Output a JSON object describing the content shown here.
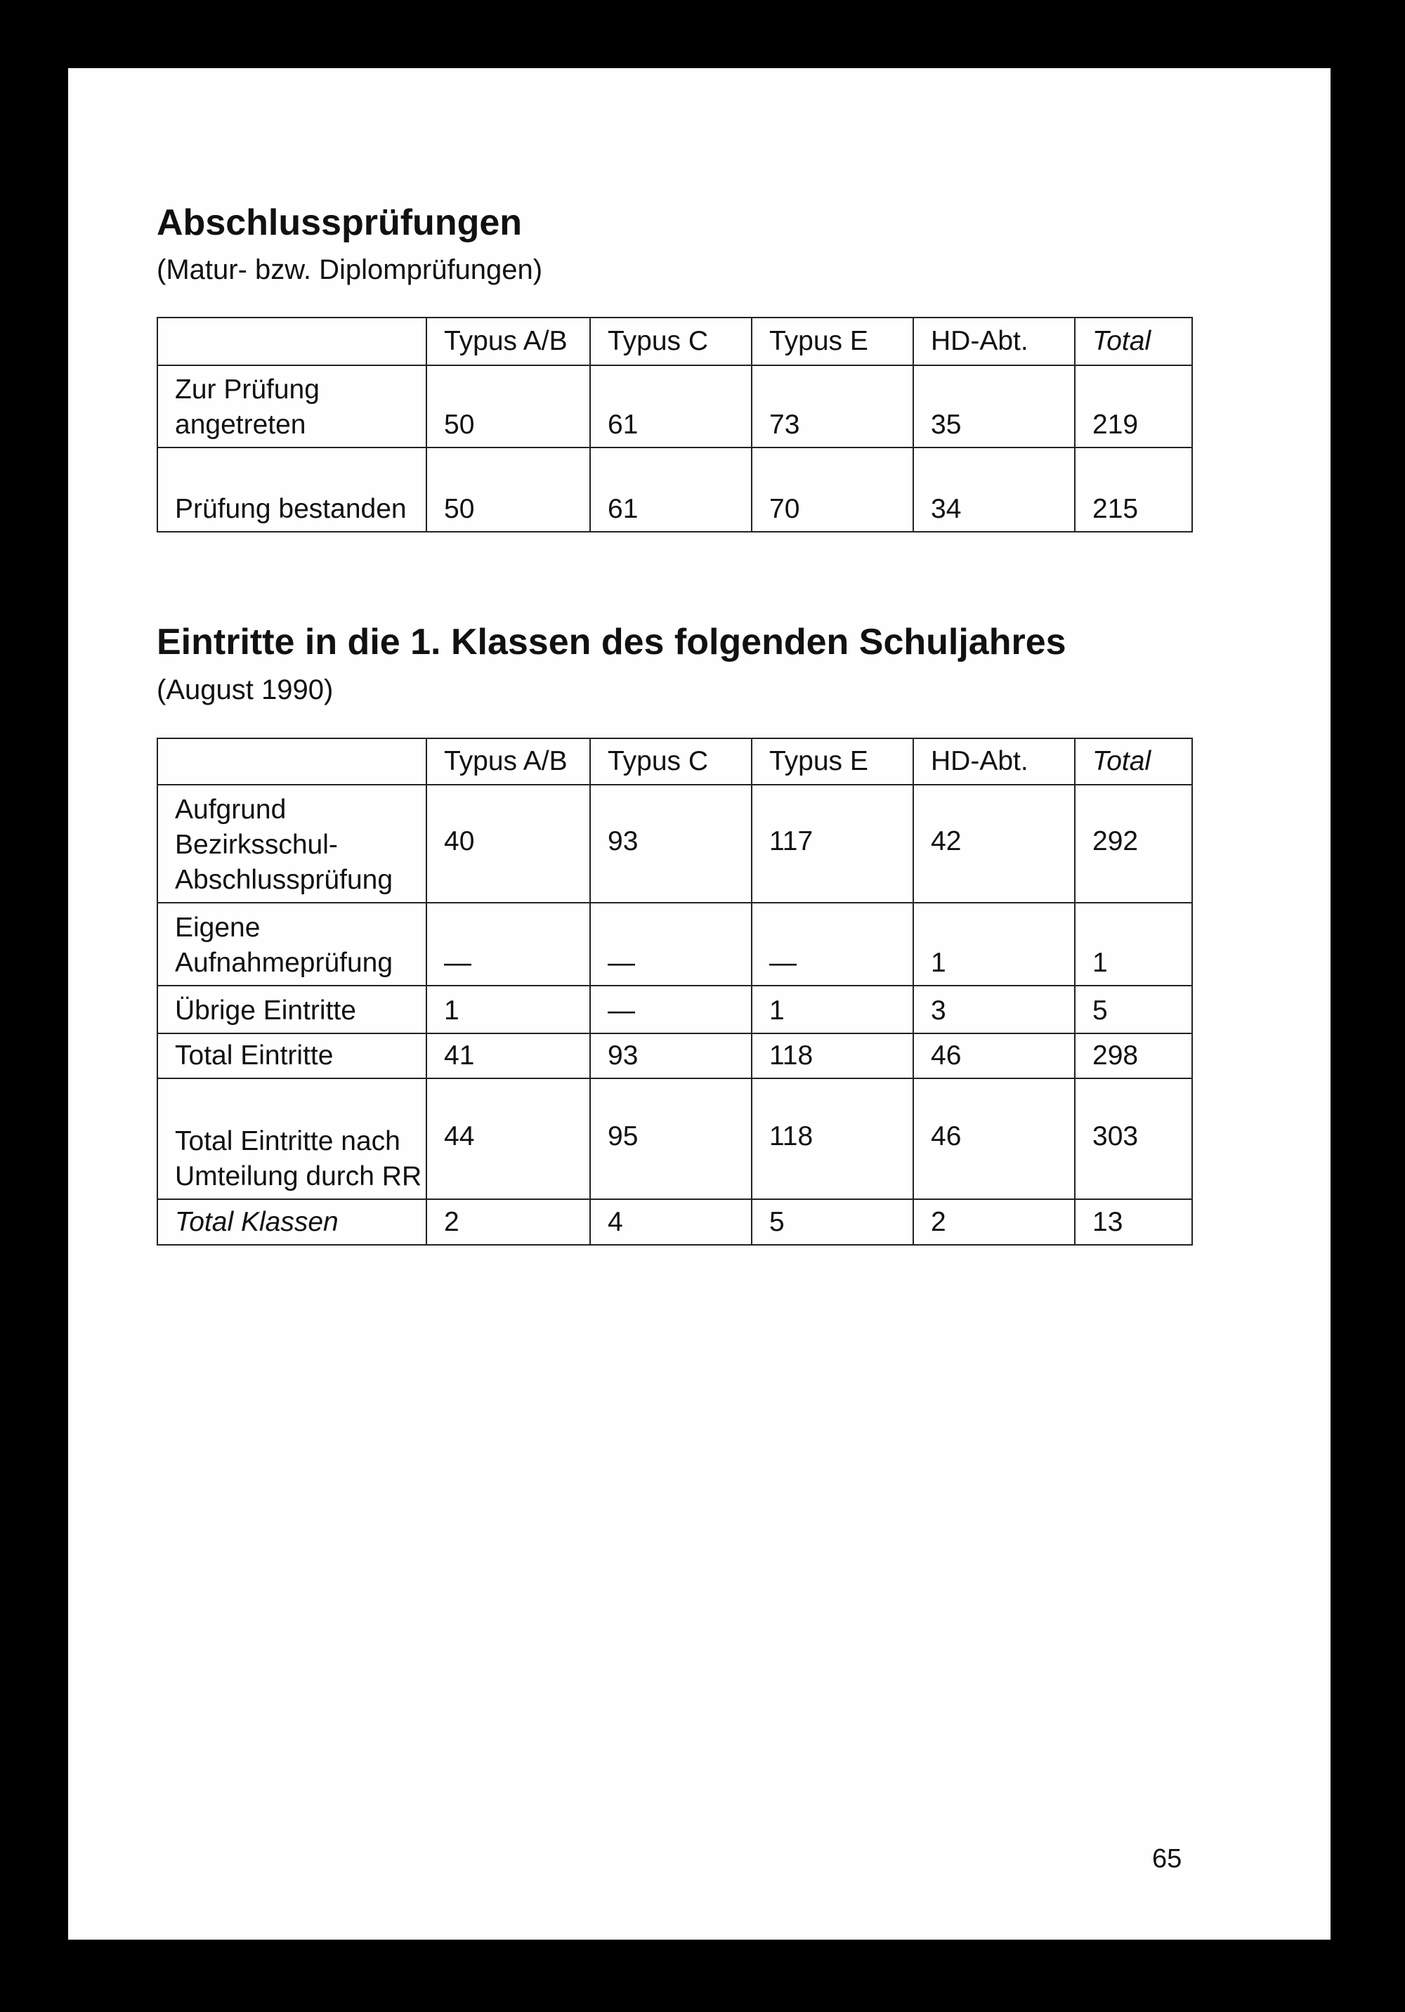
{
  "section1": {
    "title": "Abschlussprüfungen",
    "subtitle": "(Matur- bzw. Diplomprüfungen)",
    "columns": [
      "",
      "Typus A/B",
      "Typus C",
      "Typus E",
      "HD-Abt.",
      "Total"
    ],
    "rows": [
      {
        "label": "Zur Prüfung angetreten",
        "values": [
          "50",
          "61",
          "73",
          "35",
          "219"
        ]
      },
      {
        "label": "Prüfung bestanden",
        "values": [
          "50",
          "61",
          "70",
          "34",
          "215"
        ]
      }
    ]
  },
  "section2": {
    "title": "Eintritte in die 1. Klassen des folgenden Schuljahres",
    "subtitle": "(August 1990)",
    "columns": [
      "",
      "Typus A/B",
      "Typus C",
      "Typus E",
      "HD-Abt.",
      "Total"
    ],
    "rows": [
      {
        "label": "Aufgrund Bezirksschul-Abschlussprüfung",
        "values": [
          "40",
          "93",
          "117",
          "42",
          "292"
        ]
      },
      {
        "label": "Eigene Aufnahmeprüfung",
        "values": [
          "—",
          "—",
          "—",
          "1",
          "1"
        ]
      },
      {
        "label": "Übrige Eintritte",
        "values": [
          "1",
          "—",
          "1",
          "3",
          "5"
        ]
      },
      {
        "label": "Total Eintritte",
        "values": [
          "41",
          "93",
          "118",
          "46",
          "298"
        ]
      },
      {
        "label": "Total Eintritte nach Umteilung durch RR",
        "values": [
          "44",
          "95",
          "118",
          "46",
          "303"
        ]
      },
      {
        "label": "Total Klassen",
        "values": [
          "2",
          "4",
          "5",
          "2",
          "13"
        ]
      }
    ]
  },
  "page_number": "65"
}
